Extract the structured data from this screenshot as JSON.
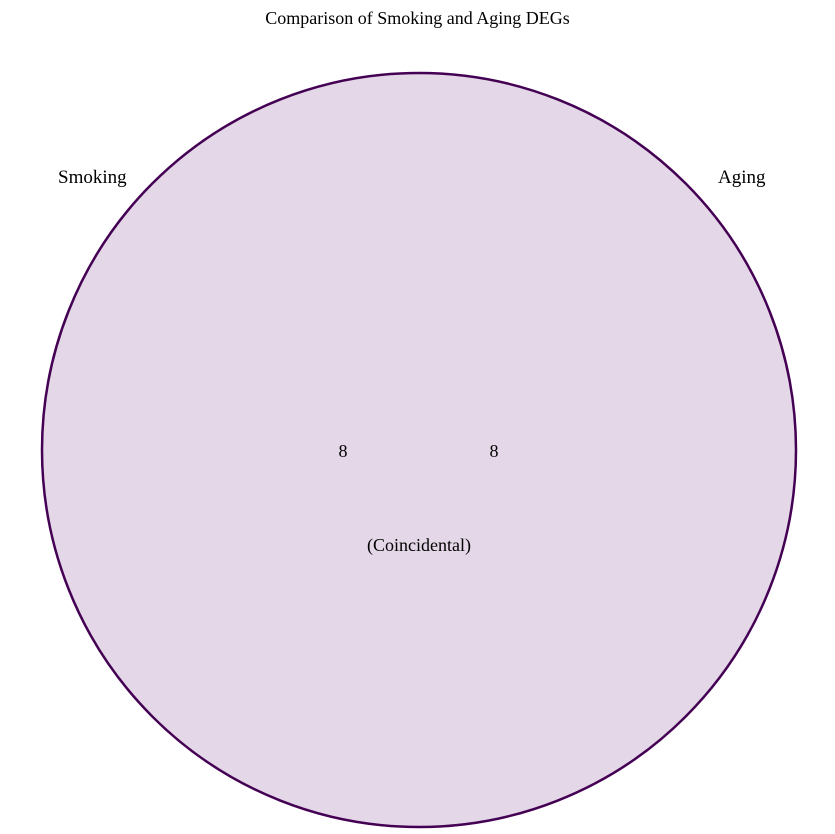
{
  "title": "Comparison of Smoking and Aging DEGs",
  "colors": {
    "fill": "#e4d7e7",
    "stroke": "#440154"
  },
  "sets": [
    {
      "label": "Smoking",
      "count": "8"
    },
    {
      "label": "Aging",
      "count": "8"
    }
  ],
  "annotation": "(Coincidental)"
}
